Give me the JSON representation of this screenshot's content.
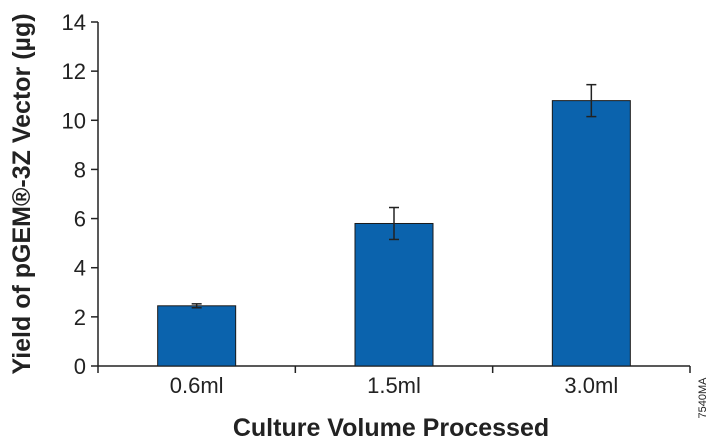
{
  "chart_data": {
    "type": "bar",
    "categories": [
      "0.6ml",
      "1.5ml",
      "3.0ml"
    ],
    "values": [
      2.45,
      5.8,
      10.8
    ],
    "error_bars": [
      0.08,
      0.65,
      0.65
    ],
    "title": "",
    "xlabel": "Culture Volume Processed",
    "ylabel": "Yield of pGEM®-3Z Vector (µg)",
    "ylim": [
      0,
      14
    ],
    "yticks": [
      "0",
      "2",
      "4",
      "6",
      "8",
      "10",
      "12",
      "14"
    ],
    "grid": false,
    "bar_color": "#0b63ad",
    "bar_edge_color": "#1a1a1a"
  },
  "figure_code": "7540MA"
}
